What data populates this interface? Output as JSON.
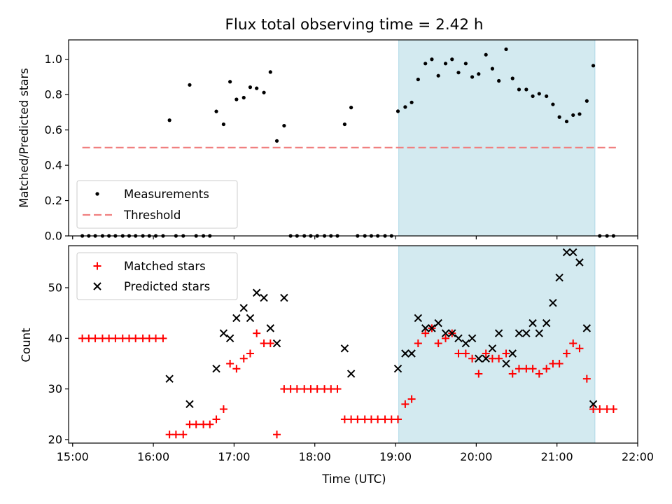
{
  "chart_data": [
    {
      "type": "scatter",
      "title": "Flux total observing time = 2.42 h",
      "xlabel": "",
      "ylabel": "Matched/Predicted stars",
      "xlim": [
        14.95,
        22.0
      ],
      "ylim": [
        0.0,
        1.11
      ],
      "yticks": [
        0.0,
        0.2,
        0.4,
        0.6,
        0.8,
        1.0
      ],
      "ytick_labels": [
        "0.0",
        "0.2",
        "0.4",
        "0.6",
        "0.8",
        "1.0"
      ],
      "xticks": [
        15,
        16,
        17,
        18,
        19,
        20,
        21,
        22
      ],
      "highlight_span": [
        19.04,
        21.47
      ],
      "threshold": {
        "name": "Threshold",
        "y": 0.5,
        "x_range": [
          15.12,
          21.73
        ],
        "color": "#f08080"
      },
      "series": [
        {
          "name": "Measurements",
          "color": "#000000",
          "x": [
            15.12,
            15.2,
            15.28,
            15.37,
            15.45,
            15.53,
            15.62,
            15.7,
            15.78,
            15.87,
            15.95,
            16.03,
            16.12,
            16.2,
            16.28,
            16.37,
            16.45,
            16.53,
            16.62,
            16.7,
            16.78,
            16.87,
            16.95,
            17.03,
            17.12,
            17.2,
            17.28,
            17.37,
            17.45,
            17.53,
            17.62,
            17.7,
            17.78,
            17.87,
            17.95,
            18.03,
            18.12,
            18.2,
            18.28,
            18.37,
            18.45,
            18.53,
            18.62,
            18.7,
            18.78,
            18.87,
            18.95,
            19.03,
            19.12,
            19.2,
            19.28,
            19.37,
            19.45,
            19.53,
            19.62,
            19.7,
            19.78,
            19.87,
            19.95,
            20.03,
            20.12,
            20.2,
            20.28,
            20.37,
            20.45,
            20.53,
            20.62,
            20.7,
            20.78,
            20.87,
            20.95,
            21.03,
            21.12,
            21.2,
            21.28,
            21.37,
            21.45,
            21.53,
            21.62,
            21.7
          ],
          "y": [
            0,
            0,
            0,
            0,
            0,
            0,
            0,
            0,
            0,
            0,
            0,
            0,
            0,
            0.655,
            0,
            0,
            0.855,
            0,
            0,
            0,
            0.705,
            0.632,
            0.873,
            0.773,
            0.783,
            0.842,
            0.836,
            0.812,
            0.928,
            0.538,
            0.624,
            0,
            0,
            0,
            0,
            0,
            0,
            0,
            0,
            0.632,
            0.727,
            0,
            0,
            0,
            0,
            0,
            0,
            0.706,
            0.73,
            0.756,
            0.886,
            0.976,
            1.0,
            0.907,
            0.976,
            1.0,
            0.925,
            0.976,
            0.9,
            0.917,
            1.026,
            0.947,
            0.878,
            1.057,
            0.892,
            0.829,
            0.829,
            0.791,
            0.805,
            0.791,
            0.745,
            0.673,
            0.648,
            0.684,
            0.69,
            0.764,
            0.964,
            0,
            0,
            0
          ]
        }
      ],
      "legend": {
        "entries": [
          "Measurements",
          "Threshold"
        ],
        "location": "lower-left"
      }
    },
    {
      "type": "scatter",
      "title": "",
      "xlabel": "Time (UTC)",
      "ylabel": "Count",
      "xlim": [
        14.95,
        22.0
      ],
      "ylim": [
        19.3,
        58.3
      ],
      "yticks": [
        20,
        30,
        40,
        50
      ],
      "ytick_labels": [
        "20",
        "30",
        "40",
        "50"
      ],
      "xticks": [
        15,
        16,
        17,
        18,
        19,
        20,
        21,
        22
      ],
      "xtick_labels": [
        "15:00",
        "16:00",
        "17:00",
        "18:00",
        "19:00",
        "20:00",
        "21:00",
        "22:00"
      ],
      "highlight_span": [
        19.04,
        21.47
      ],
      "series": [
        {
          "name": "Matched stars",
          "marker": "plus",
          "color": "#ff0000",
          "x": [
            15.12,
            15.2,
            15.28,
            15.37,
            15.45,
            15.53,
            15.62,
            15.7,
            15.78,
            15.87,
            15.95,
            16.03,
            16.12,
            16.2,
            16.28,
            16.37,
            16.45,
            16.53,
            16.62,
            16.7,
            16.78,
            16.87,
            16.95,
            17.03,
            17.12,
            17.2,
            17.28,
            17.37,
            17.45,
            17.53,
            17.62,
            17.7,
            17.78,
            17.87,
            17.95,
            18.03,
            18.12,
            18.2,
            18.28,
            18.37,
            18.45,
            18.53,
            18.62,
            18.7,
            18.78,
            18.87,
            18.95,
            19.03,
            19.12,
            19.2,
            19.28,
            19.37,
            19.45,
            19.53,
            19.62,
            19.7,
            19.78,
            19.87,
            19.95,
            20.03,
            20.12,
            20.2,
            20.28,
            20.37,
            20.45,
            20.53,
            20.62,
            20.7,
            20.78,
            20.87,
            20.95,
            21.03,
            21.12,
            21.2,
            21.28,
            21.37,
            21.45,
            21.53,
            21.62,
            21.7
          ],
          "y": [
            40,
            40,
            40,
            40,
            40,
            40,
            40,
            40,
            40,
            40,
            40,
            40,
            40,
            21,
            21,
            21,
            23,
            23,
            23,
            23,
            24,
            26,
            35,
            34,
            36,
            37,
            41,
            39,
            39,
            21,
            30,
            30,
            30,
            30,
            30,
            30,
            30,
            30,
            30,
            24,
            24,
            24,
            24,
            24,
            24,
            24,
            24,
            24,
            27,
            28,
            39,
            41,
            42,
            39,
            40,
            41,
            37,
            37,
            36,
            33,
            37,
            36,
            36,
            37,
            33,
            34,
            34,
            34,
            33,
            34,
            35,
            35,
            37,
            39,
            38,
            32,
            26,
            26,
            26,
            26
          ]
        },
        {
          "name": "Predicted stars",
          "marker": "x",
          "color": "#000000",
          "x": [
            16.2,
            16.45,
            16.78,
            16.87,
            16.95,
            17.03,
            17.12,
            17.2,
            17.28,
            17.37,
            17.45,
            17.53,
            17.62,
            18.37,
            18.45,
            19.03,
            19.12,
            19.2,
            19.28,
            19.37,
            19.45,
            19.53,
            19.62,
            19.7,
            19.78,
            19.87,
            19.95,
            20.03,
            20.12,
            20.2,
            20.28,
            20.37,
            20.45,
            20.53,
            20.62,
            20.7,
            20.78,
            20.87,
            20.95,
            21.03,
            21.12,
            21.2,
            21.28,
            21.37,
            21.45
          ],
          "y": [
            32,
            27,
            34,
            41,
            40,
            44,
            46,
            44,
            49,
            48,
            42,
            39,
            48,
            38,
            33,
            34,
            37,
            37,
            44,
            42,
            42,
            43,
            41,
            41,
            40,
            39,
            40,
            36,
            36,
            38,
            41,
            35,
            37,
            41,
            41,
            43,
            41,
            43,
            47,
            52,
            57,
            57,
            55,
            42,
            27
          ]
        }
      ],
      "legend": {
        "entries": [
          "Matched stars",
          "Predicted stars"
        ],
        "location": "upper-left"
      }
    }
  ],
  "colors": {
    "span": "#d3eaf0",
    "span_edge": "#add8e6",
    "threshold": "#f08080",
    "matched": "#ff0000",
    "predicted": "#000000"
  }
}
